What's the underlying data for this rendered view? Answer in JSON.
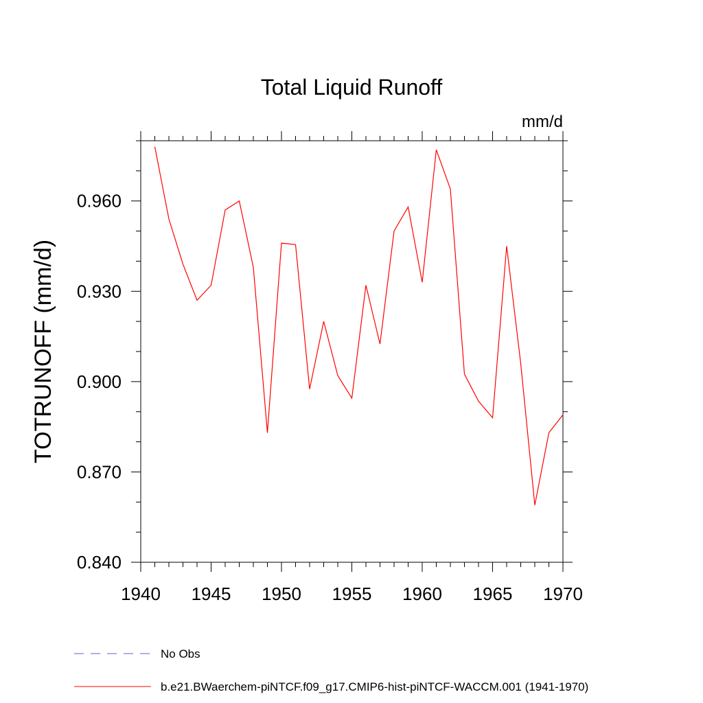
{
  "chart_data": {
    "type": "line",
    "title": "Total Liquid Runoff",
    "units_label": "mm/d",
    "ylabel": "TOTRUNOFF  (mm/d)",
    "xlabel": "",
    "xlim": [
      1940,
      1970
    ],
    "ylim": [
      0.84,
      0.98
    ],
    "x_ticks": [
      1940,
      1945,
      1950,
      1955,
      1960,
      1965,
      1970
    ],
    "x_tick_labels": [
      "1940",
      "1945",
      "1950",
      "1955",
      "1960",
      "1965",
      "1970"
    ],
    "y_ticks": [
      0.84,
      0.87,
      0.9,
      0.93,
      0.96
    ],
    "y_tick_labels": [
      "0.840",
      "0.870",
      "0.900",
      "0.930",
      "0.960"
    ],
    "grid": false,
    "series": [
      {
        "name": "b.e21.BWaerchem-piNTCF.f09_g17.CMIP6-hist-piNTCF-WACCM.001 (1941-1970)",
        "color": "#ff0000",
        "dash": "solid",
        "x": [
          1941,
          1942,
          1943,
          1944,
          1945,
          1946,
          1947,
          1948,
          1949,
          1950,
          1951,
          1952,
          1953,
          1954,
          1955,
          1956,
          1957,
          1958,
          1959,
          1960,
          1961,
          1962,
          1963,
          1964,
          1965,
          1966,
          1967,
          1968,
          1969,
          1970
        ],
        "y": [
          0.978,
          0.954,
          0.939,
          0.927,
          0.932,
          0.957,
          0.96,
          0.938,
          0.883,
          0.946,
          0.9455,
          0.8975,
          0.92,
          0.902,
          0.8945,
          0.932,
          0.9125,
          0.95,
          0.958,
          0.933,
          0.977,
          0.964,
          0.9025,
          0.8935,
          0.888,
          0.945,
          0.906,
          0.859,
          0.883,
          0.889
        ]
      },
      {
        "name": "No Obs",
        "color": "#6a5acd",
        "dash": "dashed",
        "x": [],
        "y": []
      }
    ],
    "legend_position": "bottom-left"
  }
}
